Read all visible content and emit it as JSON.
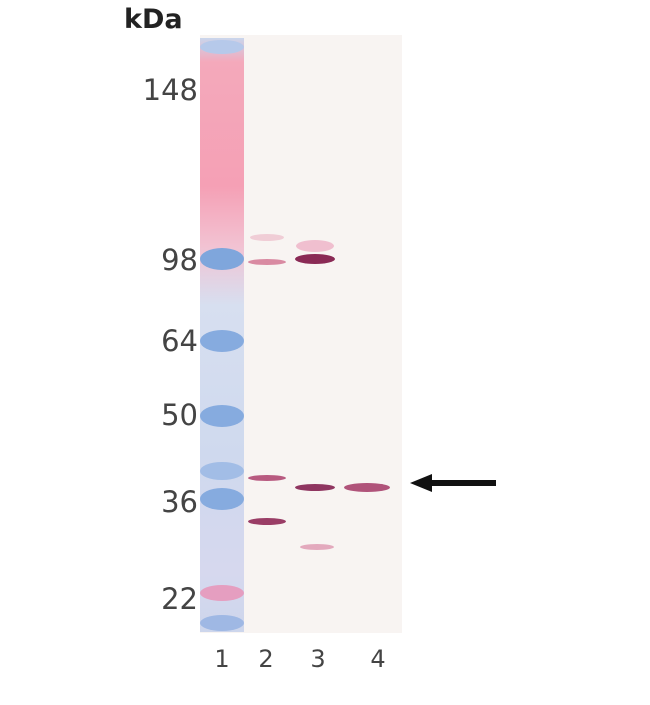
{
  "unit_label": "kDa",
  "markers": [
    {
      "label": "148",
      "kda": 148
    },
    {
      "label": "98",
      "kda": 98
    },
    {
      "label": "64",
      "kda": 64
    },
    {
      "label": "50",
      "kda": 50
    },
    {
      "label": "36",
      "kda": 36
    },
    {
      "label": "22",
      "kda": 22
    }
  ],
  "lanes": [
    "1",
    "2",
    "3",
    "4"
  ],
  "colors": {
    "ladder_blue": "#7fa6dc",
    "ladder_pink": "#f28aa6",
    "band": "#8a2a55",
    "arrow": "#111111"
  }
}
